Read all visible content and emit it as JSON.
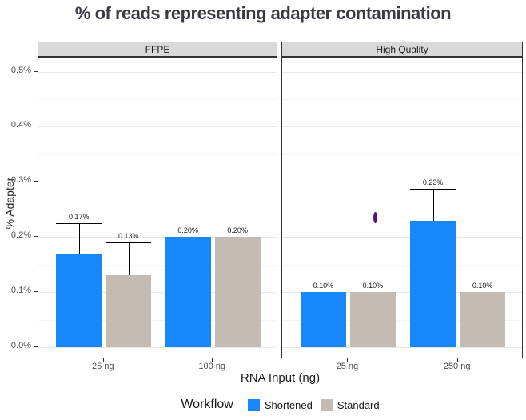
{
  "title": "% of reads representing adapter contamination",
  "y_axis": {
    "label": "% Adapter",
    "tick_labels": [
      "0.0%",
      "0.1%",
      "0.2%",
      "0.3%",
      "0.4%",
      "0.5%"
    ],
    "tick_values": [
      0,
      0.1,
      0.2,
      0.3,
      0.4,
      0.5
    ],
    "minor_values": [
      0.05,
      0.15,
      0.25,
      0.35,
      0.45
    ]
  },
  "x_axis": {
    "label": "RNA Input (ng)"
  },
  "legend": {
    "title": "Workflow",
    "items": [
      {
        "label": "Shortened",
        "color": "#1787fa"
      },
      {
        "label": "Standard",
        "color": "#c4bcb4"
      }
    ]
  },
  "colors": {
    "shortened": "#1787fa",
    "standard": "#c4bcb4",
    "strip_bg": "#d9d9d9",
    "panel_border": "#333333",
    "grid_major": "#e8e8e8",
    "grid_minor": "#f4f4f4",
    "outlier": "#5c0d86",
    "title_text": "#3b3b45",
    "axis_text": "#4d4d4d"
  },
  "chart_data": {
    "type": "bar",
    "title": "% of reads representing adapter contamination",
    "xlabel": "RNA Input (ng)",
    "ylabel": "% Adapter",
    "ylim": [
      0,
      0.525
    ],
    "grid": true,
    "legend_position": "bottom",
    "series_names": [
      "Shortened",
      "Standard"
    ],
    "facets": [
      {
        "name": "FFPE",
        "categories": [
          "25 ng",
          "100 ng"
        ],
        "groups": [
          {
            "category": "25 ng",
            "bars": [
              {
                "series": "Shortened",
                "value": 0.17,
                "label": "0.17%",
                "error_top": 0.225
              },
              {
                "series": "Standard",
                "value": 0.13,
                "label": "0.13%",
                "error_top": 0.19
              }
            ]
          },
          {
            "category": "100 ng",
            "bars": [
              {
                "series": "Shortened",
                "value": 0.2,
                "label": "0.20%"
              },
              {
                "series": "Standard",
                "value": 0.2,
                "label": "0.20%"
              }
            ]
          }
        ]
      },
      {
        "name": "High Quality",
        "categories": [
          "25 ng",
          "250 ng"
        ],
        "groups": [
          {
            "category": "25 ng",
            "bars": [
              {
                "series": "Shortened",
                "value": 0.1,
                "label": "0.10%"
              },
              {
                "series": "Standard",
                "value": 0.1,
                "label": "0.10%"
              }
            ]
          },
          {
            "category": "250 ng",
            "bars": [
              {
                "series": "Shortened",
                "value": 0.23,
                "label": "0.23%",
                "error_top": 0.288
              },
              {
                "series": "Standard",
                "value": 0.1,
                "label": "0.10%"
              }
            ]
          }
        ]
      }
    ],
    "outlier_point": {
      "facet": "High Quality",
      "value": 0.235,
      "x_frac": 0.385
    }
  }
}
